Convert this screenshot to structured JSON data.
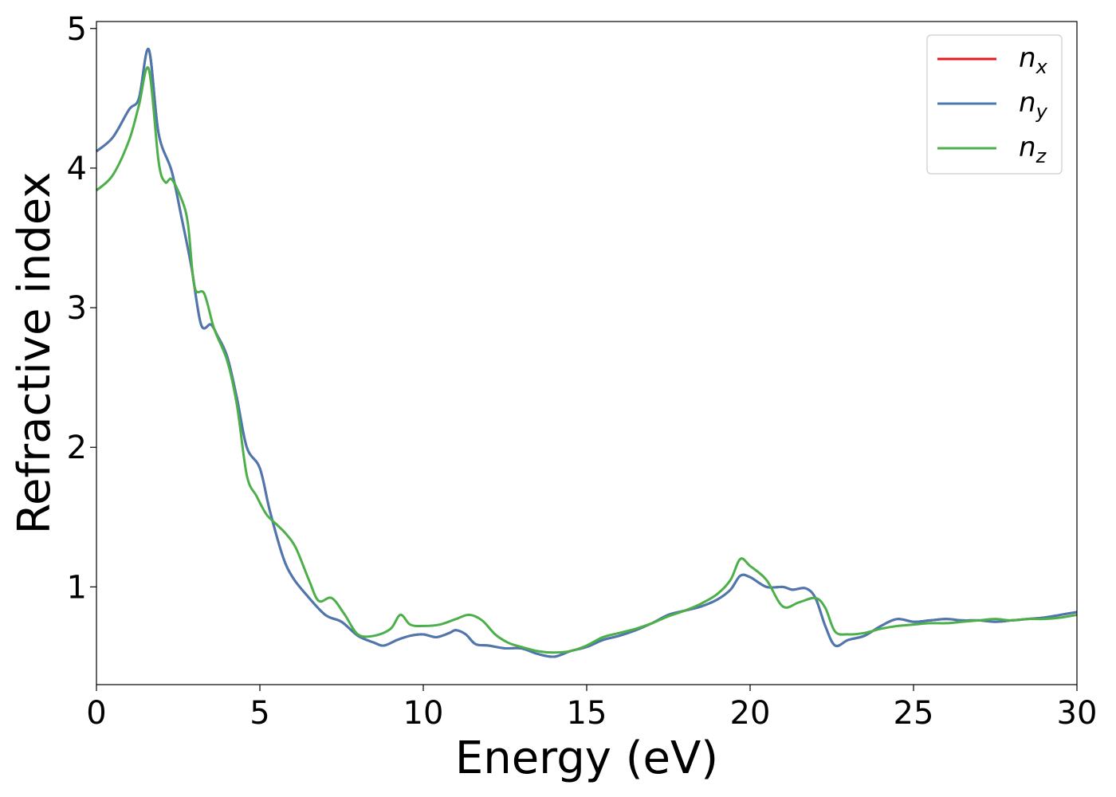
{
  "chart_data": {
    "type": "line",
    "xlabel": "Energy (eV)",
    "ylabel": "Refractive index",
    "xlim": [
      0,
      30
    ],
    "ylim": [
      0.3,
      5.05
    ],
    "xticks": [
      0,
      5,
      10,
      15,
      20,
      25,
      30
    ],
    "yticks": [
      1,
      2,
      3,
      4,
      5
    ],
    "grid": false,
    "legend_position": "top-right",
    "series": [
      {
        "name": "n_x",
        "label_base": "n",
        "label_sub": "x",
        "color": "#e41a1c",
        "x": [
          0,
          0.5,
          1.0,
          1.3,
          1.6,
          1.9,
          2.3,
          2.6,
          2.9,
          3.2,
          3.5,
          3.7,
          4.0,
          4.3,
          4.6,
          5.0,
          5.3,
          5.7,
          6.0,
          6.4,
          7.0,
          7.5,
          8.0,
          8.5,
          8.8,
          9.2,
          9.6,
          10.0,
          10.4,
          10.8,
          11.0,
          11.3,
          11.6,
          12.0,
          12.5,
          13.0,
          13.5,
          14.0,
          14.5,
          15.0,
          15.5,
          16.0,
          16.5,
          17.0,
          17.5,
          18.0,
          18.5,
          19.0,
          19.4,
          19.7,
          20.0,
          20.5,
          21.0,
          21.3,
          21.7,
          22.0,
          22.3,
          22.6,
          23.0,
          23.5,
          24.0,
          24.5,
          25.0,
          25.5,
          26.0,
          26.5,
          27.0,
          27.5,
          28.0,
          28.5,
          29.0,
          29.5,
          30.0
        ],
        "y": [
          4.12,
          4.22,
          4.42,
          4.5,
          4.85,
          4.25,
          3.98,
          3.65,
          3.3,
          2.88,
          2.88,
          2.8,
          2.65,
          2.35,
          2.0,
          1.85,
          1.55,
          1.22,
          1.07,
          0.95,
          0.8,
          0.75,
          0.65,
          0.6,
          0.58,
          0.62,
          0.65,
          0.66,
          0.64,
          0.67,
          0.69,
          0.66,
          0.59,
          0.58,
          0.56,
          0.56,
          0.52,
          0.5,
          0.54,
          0.57,
          0.62,
          0.65,
          0.69,
          0.74,
          0.8,
          0.83,
          0.86,
          0.91,
          0.98,
          1.08,
          1.07,
          1.0,
          1.0,
          0.98,
          0.99,
          0.92,
          0.72,
          0.58,
          0.62,
          0.65,
          0.72,
          0.77,
          0.75,
          0.76,
          0.77,
          0.76,
          0.76,
          0.75,
          0.76,
          0.77,
          0.78,
          0.8,
          0.82
        ]
      },
      {
        "name": "n_y",
        "label_base": "n",
        "label_sub": "y",
        "color": "#4a79b1",
        "x": [
          0,
          0.5,
          1.0,
          1.3,
          1.6,
          1.9,
          2.3,
          2.6,
          2.9,
          3.2,
          3.5,
          3.7,
          4.0,
          4.3,
          4.6,
          5.0,
          5.3,
          5.7,
          6.0,
          6.4,
          7.0,
          7.5,
          8.0,
          8.5,
          8.8,
          9.2,
          9.6,
          10.0,
          10.4,
          10.8,
          11.0,
          11.3,
          11.6,
          12.0,
          12.5,
          13.0,
          13.5,
          14.0,
          14.5,
          15.0,
          15.5,
          16.0,
          16.5,
          17.0,
          17.5,
          18.0,
          18.5,
          19.0,
          19.4,
          19.7,
          20.0,
          20.5,
          21.0,
          21.3,
          21.7,
          22.0,
          22.3,
          22.6,
          23.0,
          23.5,
          24.0,
          24.5,
          25.0,
          25.5,
          26.0,
          26.5,
          27.0,
          27.5,
          28.0,
          28.5,
          29.0,
          29.5,
          30.0
        ],
        "y": [
          4.12,
          4.22,
          4.42,
          4.5,
          4.85,
          4.25,
          3.98,
          3.65,
          3.3,
          2.88,
          2.88,
          2.8,
          2.65,
          2.35,
          2.0,
          1.85,
          1.55,
          1.22,
          1.07,
          0.95,
          0.8,
          0.75,
          0.65,
          0.6,
          0.58,
          0.62,
          0.65,
          0.66,
          0.64,
          0.67,
          0.69,
          0.66,
          0.59,
          0.58,
          0.56,
          0.56,
          0.52,
          0.5,
          0.54,
          0.57,
          0.62,
          0.65,
          0.69,
          0.74,
          0.8,
          0.83,
          0.86,
          0.91,
          0.98,
          1.08,
          1.07,
          1.0,
          1.0,
          0.98,
          0.99,
          0.92,
          0.72,
          0.58,
          0.62,
          0.65,
          0.72,
          0.77,
          0.75,
          0.76,
          0.77,
          0.76,
          0.76,
          0.75,
          0.76,
          0.77,
          0.78,
          0.8,
          0.82
        ]
      },
      {
        "name": "n_z",
        "label_base": "n",
        "label_sub": "z",
        "color": "#4daf4a",
        "x": [
          0,
          0.5,
          1.0,
          1.3,
          1.6,
          1.9,
          2.1,
          2.3,
          2.6,
          2.8,
          3.0,
          3.3,
          3.6,
          4.0,
          4.3,
          4.6,
          4.9,
          5.2,
          5.5,
          5.8,
          6.1,
          6.5,
          6.8,
          7.2,
          7.6,
          8.0,
          8.5,
          9.0,
          9.3,
          9.6,
          10.0,
          10.5,
          11.0,
          11.4,
          11.8,
          12.2,
          12.6,
          13.0,
          13.5,
          14.0,
          14.5,
          15.0,
          15.5,
          16.0,
          16.5,
          17.0,
          17.5,
          18.0,
          18.5,
          19.0,
          19.4,
          19.7,
          20.0,
          20.5,
          21.0,
          21.5,
          22.0,
          22.3,
          22.6,
          23.0,
          23.5,
          24.0,
          24.5,
          25.0,
          25.5,
          26.0,
          26.5,
          27.0,
          27.5,
          28.0,
          28.5,
          29.0,
          29.5,
          30.0
        ],
        "y": [
          3.84,
          3.95,
          4.2,
          4.45,
          4.71,
          4.05,
          3.9,
          3.92,
          3.78,
          3.6,
          3.15,
          3.1,
          2.85,
          2.62,
          2.3,
          1.8,
          1.65,
          1.52,
          1.45,
          1.38,
          1.28,
          1.05,
          0.9,
          0.92,
          0.8,
          0.66,
          0.65,
          0.7,
          0.8,
          0.73,
          0.72,
          0.73,
          0.77,
          0.8,
          0.76,
          0.66,
          0.6,
          0.57,
          0.54,
          0.53,
          0.54,
          0.58,
          0.64,
          0.67,
          0.7,
          0.74,
          0.79,
          0.83,
          0.88,
          0.95,
          1.05,
          1.2,
          1.15,
          1.05,
          0.86,
          0.89,
          0.92,
          0.85,
          0.68,
          0.66,
          0.67,
          0.7,
          0.72,
          0.73,
          0.74,
          0.74,
          0.75,
          0.76,
          0.77,
          0.76,
          0.77,
          0.77,
          0.78,
          0.8
        ]
      }
    ]
  }
}
